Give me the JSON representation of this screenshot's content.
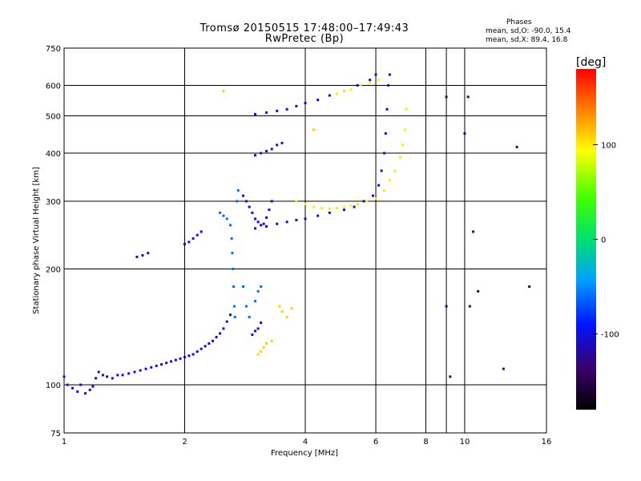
{
  "chart_data": {
    "type": "scatter",
    "title": "Tromsø 20150515 17:48:00–17:49:43",
    "subtitle": "RwPretec (Bp)",
    "xlabel": "Frequency [MHz]",
    "ylabel": "Stationary phase Virtual Height [km]",
    "xscale": "log",
    "yscale": "log",
    "xlim": [
      1,
      16
    ],
    "ylim": [
      75,
      750
    ],
    "xticks": [
      1,
      2,
      4,
      6,
      8,
      10,
      16
    ],
    "xgrid_extra": [
      9
    ],
    "yticks": [
      75,
      100,
      200,
      300,
      400,
      500,
      600,
      750
    ],
    "grid": true,
    "phases_label": {
      "heading": "Phases",
      "line1": "mean, sd,O: -90.0, 15.4",
      "line2": "mean, sd,X: 89.4, 16.8"
    },
    "colorbar": {
      "label": "[deg]",
      "range": [
        -180,
        180
      ],
      "ticks": [
        100,
        0,
        -100
      ]
    },
    "series": [
      {
        "name": "E-layer base (blue)",
        "phase": -100,
        "points": [
          [
            1.0,
            105
          ],
          [
            1.02,
            100
          ],
          [
            1.05,
            98
          ],
          [
            1.08,
            96
          ],
          [
            1.1,
            100
          ],
          [
            1.13,
            95
          ],
          [
            1.16,
            97
          ],
          [
            1.18,
            99
          ],
          [
            1.2,
            104
          ],
          [
            1.22,
            108
          ],
          [
            1.25,
            106
          ],
          [
            1.28,
            105
          ],
          [
            1.32,
            104
          ],
          [
            1.36,
            106
          ],
          [
            1.4,
            106
          ],
          [
            1.45,
            107
          ],
          [
            1.5,
            108
          ],
          [
            1.55,
            109
          ],
          [
            1.6,
            110
          ],
          [
            1.65,
            111
          ],
          [
            1.7,
            112
          ],
          [
            1.75,
            113
          ],
          [
            1.8,
            114
          ],
          [
            1.85,
            115
          ],
          [
            1.9,
            116
          ],
          [
            1.95,
            117
          ],
          [
            2.0,
            118
          ],
          [
            2.05,
            119
          ],
          [
            2.1,
            120
          ],
          [
            2.15,
            122
          ],
          [
            2.2,
            124
          ],
          [
            2.25,
            126
          ],
          [
            2.3,
            128
          ],
          [
            2.35,
            130
          ],
          [
            2.4,
            133
          ],
          [
            2.45,
            136
          ],
          [
            2.5,
            140
          ],
          [
            2.55,
            146
          ],
          [
            2.6,
            152
          ]
        ]
      },
      {
        "name": "F1 trace (blue)",
        "phase": -95,
        "points": [
          [
            1.52,
            215
          ],
          [
            1.57,
            217
          ],
          [
            1.62,
            220
          ],
          [
            2.0,
            232
          ],
          [
            2.05,
            235
          ],
          [
            2.1,
            240
          ],
          [
            2.15,
            245
          ],
          [
            2.2,
            250
          ]
        ]
      },
      {
        "name": "F1 cusp (sky blue)",
        "phase": -60,
        "points": [
          [
            2.45,
            280
          ],
          [
            2.5,
            275
          ],
          [
            2.55,
            270
          ],
          [
            2.6,
            260
          ],
          [
            2.62,
            240
          ],
          [
            2.63,
            220
          ],
          [
            2.64,
            200
          ],
          [
            2.65,
            180
          ],
          [
            2.66,
            160
          ],
          [
            2.67,
            150
          ],
          [
            2.7,
            300
          ],
          [
            2.72,
            320
          ],
          [
            2.8,
            180
          ],
          [
            2.85,
            160
          ],
          [
            2.9,
            150
          ],
          [
            3.0,
            165
          ],
          [
            3.05,
            175
          ],
          [
            3.1,
            180
          ]
        ]
      },
      {
        "name": "F1 cusp (blue)",
        "phase": -100,
        "points": [
          [
            2.8,
            310
          ],
          [
            2.85,
            300
          ],
          [
            2.9,
            290
          ],
          [
            2.95,
            280
          ],
          [
            3.0,
            270
          ],
          [
            3.05,
            265
          ],
          [
            3.1,
            260
          ],
          [
            3.15,
            262
          ],
          [
            3.2,
            272
          ],
          [
            3.25,
            285
          ],
          [
            3.3,
            300
          ],
          [
            2.95,
            135
          ],
          [
            3.0,
            138
          ],
          [
            3.05,
            140
          ],
          [
            3.1,
            145
          ]
        ]
      },
      {
        "name": "F2 trace (dark blue)",
        "phase": -105,
        "points": [
          [
            3.0,
            255
          ],
          [
            3.2,
            258
          ],
          [
            3.4,
            262
          ],
          [
            3.6,
            265
          ],
          [
            3.8,
            268
          ],
          [
            4.0,
            270
          ],
          [
            4.3,
            275
          ],
          [
            4.6,
            280
          ],
          [
            5.0,
            285
          ],
          [
            5.3,
            290
          ],
          [
            5.6,
            300
          ],
          [
            5.9,
            310
          ],
          [
            6.1,
            330
          ],
          [
            6.2,
            360
          ],
          [
            6.3,
            400
          ],
          [
            6.35,
            450
          ],
          [
            6.4,
            520
          ],
          [
            6.45,
            600
          ],
          [
            6.5,
            640
          ]
        ]
      },
      {
        "name": "F2 O-trace (yellow)",
        "phase": 100,
        "points": [
          [
            3.8,
            300
          ],
          [
            4.0,
            295
          ],
          [
            4.2,
            290
          ],
          [
            4.4,
            288
          ],
          [
            4.6,
            287
          ],
          [
            4.8,
            288
          ],
          [
            5.0,
            290
          ],
          [
            5.2,
            292
          ],
          [
            5.4,
            295
          ],
          [
            5.7,
            300
          ],
          [
            6.0,
            305
          ],
          [
            6.3,
            320
          ],
          [
            6.5,
            340
          ],
          [
            6.7,
            360
          ],
          [
            6.9,
            390
          ],
          [
            7.0,
            420
          ],
          [
            7.1,
            460
          ],
          [
            7.15,
            520
          ]
        ]
      },
      {
        "name": "2F trace (blue)",
        "phase": -100,
        "points": [
          [
            3.0,
            505
          ],
          [
            3.2,
            510
          ],
          [
            3.4,
            515
          ],
          [
            3.6,
            520
          ],
          [
            3.8,
            530
          ],
          [
            4.0,
            540
          ],
          [
            4.3,
            550
          ],
          [
            4.6,
            565
          ],
          [
            5.0,
            580
          ],
          [
            5.4,
            600
          ],
          [
            5.8,
            620
          ],
          [
            6.0,
            640
          ],
          [
            3.0,
            395
          ],
          [
            3.1,
            400
          ],
          [
            3.2,
            405
          ],
          [
            3.3,
            410
          ],
          [
            3.4,
            420
          ],
          [
            3.5,
            425
          ]
        ]
      },
      {
        "name": "2F O-trace (yellow)",
        "phase": 100,
        "points": [
          [
            4.8,
            570
          ],
          [
            5.0,
            580
          ],
          [
            5.2,
            585
          ],
          [
            5.5,
            600
          ],
          [
            5.8,
            610
          ],
          [
            6.1,
            620
          ]
        ]
      },
      {
        "name": "sporadic (yellow/orange)",
        "phase": 110,
        "points": [
          [
            3.05,
            120
          ],
          [
            3.1,
            122
          ],
          [
            3.15,
            125
          ],
          [
            3.2,
            128
          ],
          [
            3.3,
            130
          ],
          [
            3.45,
            160
          ],
          [
            3.5,
            155
          ],
          [
            3.6,
            150
          ],
          [
            3.7,
            158
          ],
          [
            4.2,
            460
          ],
          [
            2.5,
            580
          ]
        ]
      },
      {
        "name": "noise",
        "phase": -130,
        "points": [
          [
            9.0,
            160
          ],
          [
            9.2,
            105
          ],
          [
            10.3,
            160
          ],
          [
            10.8,
            175
          ],
          [
            12.5,
            110
          ],
          [
            13.5,
            415
          ],
          [
            14.5,
            180
          ],
          [
            10.2,
            560
          ],
          [
            9.0,
            560
          ],
          [
            10.0,
            450
          ],
          [
            10.5,
            250
          ]
        ]
      }
    ]
  }
}
